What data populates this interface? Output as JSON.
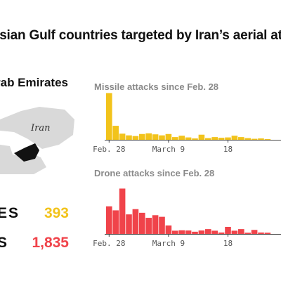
{
  "title": "rsian Gulf countries targeted by Iran’s aerial at",
  "country_label": "rab Emirates",
  "map_label": "Iran",
  "stats": [
    {
      "label": "ES",
      "value": "393",
      "color": "#f2c31b"
    },
    {
      "label": "S",
      "value": "1,835",
      "color": "#f0434a"
    }
  ],
  "colors": {
    "missile": "#f2c31b",
    "drone": "#f0434a",
    "map_land": "#d9d9d9",
    "uae": "#111111"
  },
  "chart_data": [
    {
      "type": "bar",
      "title": "Missile attacks since Feb. 28",
      "tick_labels": [
        {
          "index": 0,
          "label": "Feb. 28"
        },
        {
          "index": 9,
          "label": "March 9"
        },
        {
          "index": 18,
          "label": "18"
        }
      ],
      "values": [
        137,
        41,
        18,
        13,
        11,
        17,
        19,
        16,
        13,
        17,
        8,
        12,
        7,
        4,
        15,
        5,
        8,
        6,
        7,
        12,
        8,
        5,
        3,
        4,
        2
      ],
      "ylim": [
        0,
        140
      ],
      "xlabel": "",
      "ylabel": ""
    },
    {
      "type": "bar",
      "title": "Drone attacks since Feb. 28",
      "tick_labels": [
        {
          "index": 0,
          "label": "Feb. 28"
        },
        {
          "index": 9,
          "label": "March 9"
        },
        {
          "index": 18,
          "label": "18"
        }
      ],
      "values": [
        137,
        117,
        225,
        97,
        123,
        105,
        80,
        93,
        85,
        42,
        16,
        18,
        17,
        11,
        17,
        24,
        16,
        7,
        35,
        16,
        24,
        6,
        20,
        7,
        6
      ],
      "ylim": [
        0,
        230
      ],
      "xlabel": "",
      "ylabel": ""
    }
  ]
}
